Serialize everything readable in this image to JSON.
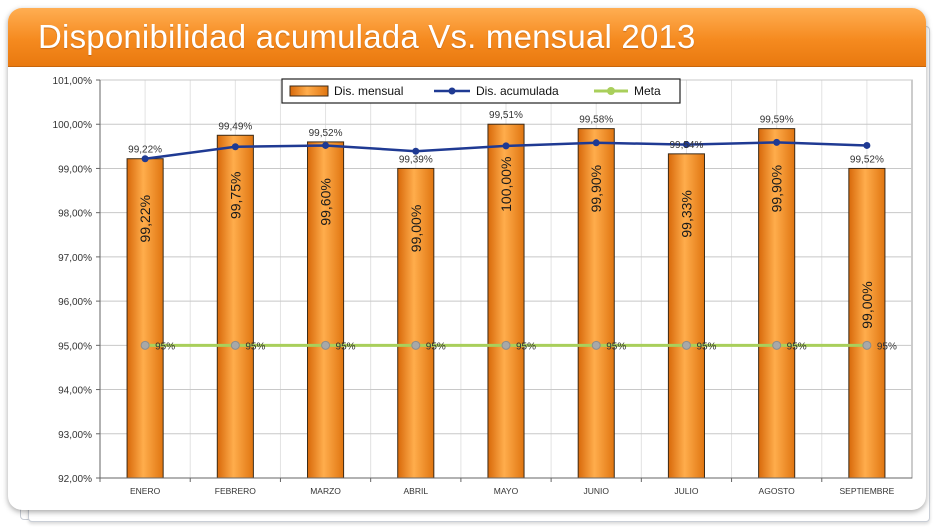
{
  "header": {
    "title": "Disponibilidad acumulada Vs. mensual 2013"
  },
  "chart_data": {
    "type": "bar",
    "title": "Disponibilidad acumulada Vs. mensual 2013",
    "xlabel": "",
    "ylabel": "",
    "categories": [
      "ENERO",
      "FEBRERO",
      "MARZO",
      "ABRIL",
      "MAYO",
      "JUNIO",
      "JULIO",
      "AGOSTO",
      "SEPTIEMBRE"
    ],
    "ylim": [
      92,
      101
    ],
    "yticks": [
      "92,00%",
      "93,00%",
      "94,00%",
      "95,00%",
      "96,00%",
      "97,00%",
      "98,00%",
      "99,00%",
      "100,00%",
      "101,00%"
    ],
    "grid": true,
    "legend": "top-center",
    "series": [
      {
        "name": "Dis. mensual",
        "kind": "bar",
        "color": "#f39a2f",
        "values": [
          99.22,
          99.75,
          99.6,
          99.0,
          100.0,
          99.9,
          99.33,
          99.9,
          99.0
        ],
        "labels": [
          "99,22%",
          "99,75%",
          "99,60%",
          "99,00%",
          "100,00%",
          "99,90%",
          "99,33%",
          "99,90%",
          "99,00%"
        ]
      },
      {
        "name": "Dis. acumulada",
        "kind": "line",
        "color": "#1f3a93",
        "values": [
          99.22,
          99.49,
          99.52,
          99.39,
          99.51,
          99.58,
          99.54,
          99.59,
          99.52
        ],
        "labels": [
          "99,22%",
          "99,49%",
          "99,52%",
          "99,39%",
          "99,51%",
          "99,58%",
          "99,54%",
          "99,59%",
          "99,52%"
        ]
      },
      {
        "name": "Meta",
        "kind": "line",
        "color": "#a9cf5b",
        "values": [
          95,
          95,
          95,
          95,
          95,
          95,
          95,
          95,
          95
        ],
        "labels": [
          "95%",
          "95%",
          "95%",
          "95%",
          "95%",
          "95%",
          "95%",
          "95%",
          "95%"
        ]
      }
    ]
  }
}
